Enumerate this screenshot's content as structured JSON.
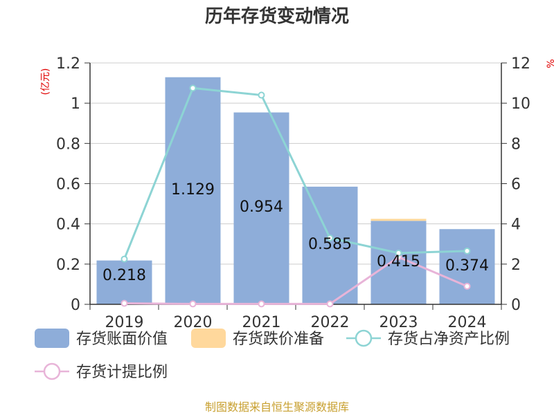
{
  "title": "历年存货变动情况",
  "source": "制图数据来自恒生聚源数据库",
  "left_unit": "(亿元)",
  "right_unit": "%",
  "colors": {
    "book_value": "#8eadd9",
    "impairment": "#ffd89c",
    "net_asset_ratio": "#8dd4d4",
    "provision_ratio": "#e8b4d8"
  },
  "chart_data": {
    "type": "bar",
    "title": "历年存货变动情况",
    "categories": [
      "2019",
      "2020",
      "2021",
      "2022",
      "2023",
      "2024"
    ],
    "y_left": {
      "min": 0,
      "max": 1.2,
      "ticks": [
        "0",
        "0.2",
        "0.4",
        "0.6",
        "0.8",
        "1",
        "1.2"
      ],
      "unit": "(亿元)"
    },
    "y_right": {
      "min": 0,
      "max": 12,
      "ticks": [
        "0",
        "2",
        "4",
        "6",
        "8",
        "10",
        "12"
      ],
      "unit": "%"
    },
    "grid": true,
    "legend_position": "bottom",
    "series": [
      {
        "name": "存货账面价值",
        "kind": "bar",
        "axis": "left",
        "values": [
          0.218,
          1.129,
          0.954,
          0.585,
          0.415,
          0.374
        ],
        "labels": [
          "0.218",
          "1.129",
          "0.954",
          "0.585",
          "0.415",
          "0.374"
        ]
      },
      {
        "name": "存货跌价准备",
        "kind": "bar-stacked",
        "axis": "left",
        "values": [
          0,
          0,
          0,
          0,
          0.01,
          0
        ]
      },
      {
        "name": "存货占净资产比例",
        "kind": "line",
        "axis": "right",
        "values": [
          2.25,
          10.75,
          10.4,
          3.3,
          2.55,
          2.65
        ]
      },
      {
        "name": "存货计提比例",
        "kind": "line",
        "axis": "right",
        "values": [
          0.05,
          0.02,
          0.02,
          0.02,
          2.35,
          0.9
        ]
      }
    ]
  }
}
